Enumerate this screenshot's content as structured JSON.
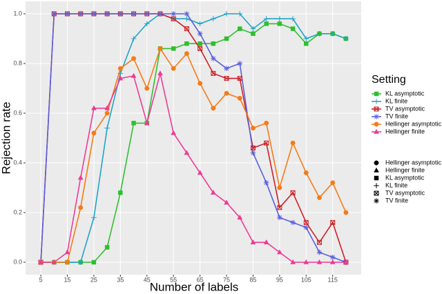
{
  "chart_data": {
    "type": "line",
    "x_label": "Number of labels",
    "y_label": "Rejection rate",
    "x": [
      5,
      10,
      15,
      20,
      25,
      30,
      35,
      40,
      45,
      50,
      55,
      60,
      65,
      70,
      75,
      80,
      85,
      90,
      95,
      100,
      105,
      110,
      115,
      120
    ],
    "xlim": [
      -0.75,
      125.75
    ],
    "xticks": [
      5,
      15,
      25,
      35,
      45,
      55,
      65,
      75,
      85,
      95,
      105,
      115
    ],
    "ylim": [
      -0.05,
      1.05
    ],
    "yticks": [
      {
        "value": 0,
        "label": "0.0"
      },
      0.2,
      0.4,
      0.6,
      0.8,
      {
        "value": 1,
        "label": "1.0"
      }
    ],
    "grid": true,
    "legend": "right",
    "legend_title": "Setting",
    "series": [
      {
        "name": "KL asymptotic",
        "color": "#2fbf2f",
        "shape": "square",
        "values": [
          0,
          0,
          0,
          0,
          0,
          0.06,
          0.28,
          0.56,
          0.56,
          0.86,
          0.86,
          0.88,
          0.88,
          0.88,
          0.9,
          0.94,
          0.92,
          0.96,
          0.96,
          0.94,
          0.88,
          0.92,
          0.92,
          0.9
        ]
      },
      {
        "name": "KL finite",
        "color": "#1ea3c9",
        "shape": "plus",
        "values": [
          0,
          0,
          0,
          0,
          0.18,
          0.54,
          0.76,
          0.9,
          0.96,
          1,
          0.98,
          0.98,
          0.96,
          0.98,
          1,
          1,
          0.94,
          0.98,
          0.98,
          0.98,
          0.9,
          0.92,
          0.92,
          0.9
        ]
      },
      {
        "name": "TV asymptotic",
        "color": "#cc1f26",
        "shape": "square-cross",
        "values": [
          0,
          1,
          1,
          1,
          1,
          1,
          1,
          1,
          1,
          1,
          0.98,
          0.94,
          0.86,
          0.76,
          0.74,
          0.74,
          0.46,
          0.48,
          0.22,
          0.28,
          0.16,
          0.08,
          0.16,
          0
        ]
      },
      {
        "name": "TV finite",
        "color": "#5b5fdc",
        "shape": "asterisk",
        "values": [
          0,
          1,
          1,
          1,
          1,
          1,
          1,
          1,
          1,
          1,
          1,
          1,
          0.92,
          0.82,
          0.78,
          0.8,
          0.44,
          0.32,
          0.18,
          0.16,
          0.14,
          0.04,
          0.02,
          0
        ]
      },
      {
        "name": "Hellinger asymptotic",
        "color": "#f57b16",
        "shape": "circle",
        "values": [
          0,
          0,
          0,
          0.22,
          0.52,
          0.6,
          0.78,
          0.82,
          0.7,
          0.86,
          0.78,
          0.84,
          0.72,
          0.62,
          0.68,
          0.66,
          0.54,
          0.56,
          0.3,
          0.48,
          0.36,
          0.26,
          0.32,
          0.2
        ]
      },
      {
        "name": "Hellinger finite",
        "color": "#ee3a96",
        "shape": "triangle",
        "values": [
          0,
          0,
          0.04,
          0.34,
          0.62,
          0.62,
          0.74,
          0.75,
          0.56,
          0.76,
          0.52,
          0.44,
          0.36,
          0.28,
          0.24,
          0.18,
          0.08,
          0.08,
          0.04,
          0,
          0,
          0,
          0,
          0
        ]
      }
    ],
    "shape_legend": [
      {
        "label": "Hellinger asymptotic",
        "shape": "circle"
      },
      {
        "label": "Hellinger finite",
        "shape": "triangle"
      },
      {
        "label": "KL asymptotic",
        "shape": "square"
      },
      {
        "label": "KL finite",
        "shape": "plus"
      },
      {
        "label": "TV asymptotic",
        "shape": "square-cross"
      },
      {
        "label": "TV finite",
        "shape": "asterisk"
      }
    ]
  }
}
